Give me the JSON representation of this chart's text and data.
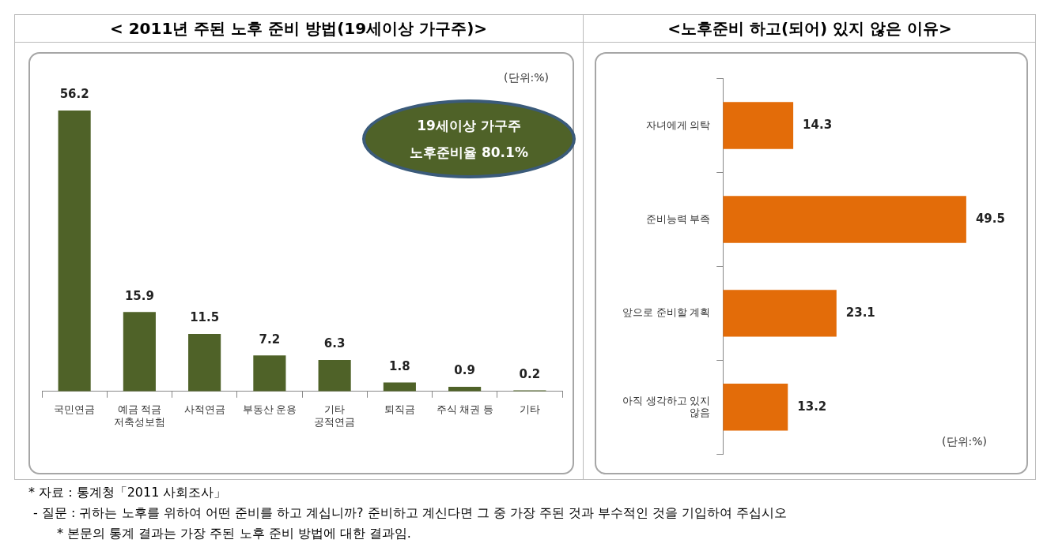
{
  "chart_data": [
    {
      "type": "bar",
      "title": "< 2011년 주된 노후 준비 방법(19세이상 가구주)>",
      "categories": [
        "국민연금",
        "예금 적금\n저축성보험",
        "사적연금",
        "부동산 운용",
        "기타\n공적연금",
        "퇴직금",
        "주식 채권 등",
        "기타"
      ],
      "values": [
        56.2,
        15.9,
        11.5,
        7.2,
        6.3,
        1.8,
        0.9,
        0.2
      ],
      "color": "#4f6228",
      "data_labels": true,
      "grid": false,
      "legend": false,
      "annotations": [
        "(단위:%)",
        "19세이상 가구주\n노후준비율 80.1%",
        "* 자료 : 통계청「2011 사회조사」",
        "- 질문 : 귀하는 노후를 위하여 어떤 준비를 하고 계십니까? 준비하고 계신다면 그 중 가장 주된 것과 부수적인 것을 기입하여 주십시오",
        "* 본문의 통계 결과는 가장 주된 노후 준비 방법에 대한 결과임."
      ]
    },
    {
      "type": "bar",
      "orientation": "horizontal",
      "title": "<노후준비 하고(되어) 있지 않은 이유>",
      "categories": [
        "자녀에게 의탁",
        "준비능력 부족",
        "앞으로 준비할 계획",
        "아직 생각하고 있지\n않음"
      ],
      "values": [
        14.3,
        49.5,
        23.1,
        13.2
      ],
      "color": "#e36c09",
      "data_labels": true,
      "grid": false,
      "legend": false,
      "annotations": [
        "(단위:%)"
      ]
    }
  ]
}
